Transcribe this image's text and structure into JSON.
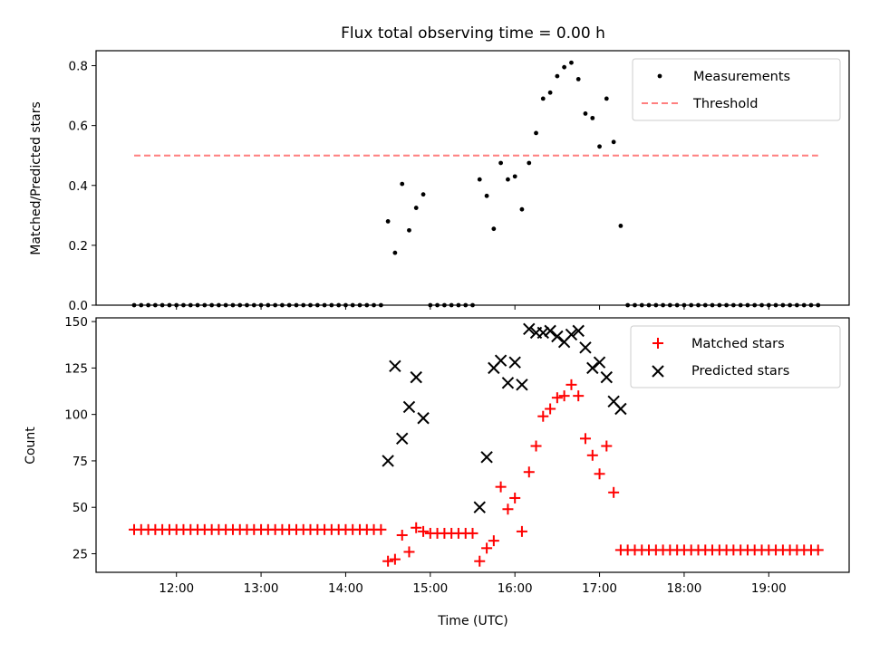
{
  "chart_data": [
    {
      "type": "scatter",
      "title": "Flux total observing time = 0.00 h",
      "ylabel": "Matched/Predicted stars",
      "ylim": [
        0,
        0.85
      ],
      "yticks": [
        "0.0",
        "0.2",
        "0.4",
        "0.6",
        "0.8"
      ],
      "yticks_values": [
        0,
        0.2,
        0.4,
        0.6,
        0.8
      ],
      "legend_position": "top-right",
      "series": [
        {
          "name": "Measurements",
          "color": "#000000",
          "marker": "dot",
          "points": [
            [
              11.5,
              0
            ],
            [
              11.583,
              0
            ],
            [
              11.667,
              0
            ],
            [
              11.75,
              0
            ],
            [
              11.833,
              0
            ],
            [
              11.917,
              0
            ],
            [
              12.0,
              0
            ],
            [
              12.083,
              0
            ],
            [
              12.167,
              0
            ],
            [
              12.25,
              0
            ],
            [
              12.333,
              0
            ],
            [
              12.417,
              0
            ],
            [
              12.5,
              0
            ],
            [
              12.583,
              0
            ],
            [
              12.667,
              0
            ],
            [
              12.75,
              0
            ],
            [
              12.833,
              0
            ],
            [
              12.917,
              0
            ],
            [
              13.0,
              0
            ],
            [
              13.083,
              0
            ],
            [
              13.167,
              0
            ],
            [
              13.25,
              0
            ],
            [
              13.333,
              0
            ],
            [
              13.417,
              0
            ],
            [
              13.5,
              0
            ],
            [
              13.583,
              0
            ],
            [
              13.667,
              0
            ],
            [
              13.75,
              0
            ],
            [
              13.833,
              0
            ],
            [
              13.917,
              0
            ],
            [
              14.0,
              0
            ],
            [
              14.083,
              0
            ],
            [
              14.167,
              0
            ],
            [
              14.25,
              0
            ],
            [
              14.333,
              0
            ],
            [
              14.417,
              0
            ],
            [
              14.5,
              0.28
            ],
            [
              14.583,
              0.175
            ],
            [
              14.667,
              0.405
            ],
            [
              14.75,
              0.25
            ],
            [
              14.833,
              0.325
            ],
            [
              14.917,
              0.37
            ],
            [
              15.0,
              0
            ],
            [
              15.083,
              0
            ],
            [
              15.167,
              0
            ],
            [
              15.25,
              0
            ],
            [
              15.333,
              0
            ],
            [
              15.417,
              0
            ],
            [
              15.5,
              0
            ],
            [
              15.583,
              0.42
            ],
            [
              15.667,
              0.365
            ],
            [
              15.75,
              0.255
            ],
            [
              15.833,
              0.475
            ],
            [
              15.917,
              0.42
            ],
            [
              16.0,
              0.43
            ],
            [
              16.083,
              0.32
            ],
            [
              16.167,
              0.475
            ],
            [
              16.25,
              0.575
            ],
            [
              16.333,
              0.69
            ],
            [
              16.417,
              0.71
            ],
            [
              16.5,
              0.765
            ],
            [
              16.583,
              0.795
            ],
            [
              16.667,
              0.81
            ],
            [
              16.75,
              0.755
            ],
            [
              16.833,
              0.64
            ],
            [
              16.917,
              0.625
            ],
            [
              17.0,
              0.53
            ],
            [
              17.083,
              0.69
            ],
            [
              17.167,
              0.545
            ],
            [
              17.25,
              0.265
            ],
            [
              17.333,
              0
            ],
            [
              17.417,
              0
            ],
            [
              17.5,
              0
            ],
            [
              17.583,
              0
            ],
            [
              17.667,
              0
            ],
            [
              17.75,
              0
            ],
            [
              17.833,
              0
            ],
            [
              17.917,
              0
            ],
            [
              18.0,
              0
            ],
            [
              18.083,
              0
            ],
            [
              18.167,
              0
            ],
            [
              18.25,
              0
            ],
            [
              18.333,
              0
            ],
            [
              18.417,
              0
            ],
            [
              18.5,
              0
            ],
            [
              18.583,
              0
            ],
            [
              18.667,
              0
            ],
            [
              18.75,
              0
            ],
            [
              18.833,
              0
            ],
            [
              18.917,
              0
            ],
            [
              19.0,
              0
            ],
            [
              19.083,
              0
            ],
            [
              19.167,
              0
            ],
            [
              19.25,
              0
            ],
            [
              19.333,
              0
            ],
            [
              19.417,
              0
            ],
            [
              19.5,
              0
            ],
            [
              19.583,
              0
            ]
          ]
        },
        {
          "name": "Threshold",
          "color": "#ff7f7f",
          "style": "dashed",
          "line": [
            [
              11.5,
              0.5
            ],
            [
              19.583,
              0.5
            ]
          ]
        }
      ]
    },
    {
      "type": "scatter",
      "xlabel": "Time (UTC)",
      "ylabel": "Count",
      "xlim": [
        11.05,
        19.95
      ],
      "ylim": [
        15,
        152
      ],
      "xticks": [
        "12:00",
        "13:00",
        "14:00",
        "15:00",
        "16:00",
        "17:00",
        "18:00",
        "19:00"
      ],
      "xticks_values": [
        12,
        13,
        14,
        15,
        16,
        17,
        18,
        19
      ],
      "yticks": [
        "25",
        "50",
        "75",
        "100",
        "125",
        "150"
      ],
      "yticks_values": [
        25,
        50,
        75,
        100,
        125,
        150
      ],
      "legend_position": "top-right",
      "series": [
        {
          "name": "Matched stars",
          "color": "#ff0000",
          "marker": "plus",
          "points": [
            [
              11.5,
              38
            ],
            [
              11.583,
              38
            ],
            [
              11.667,
              38
            ],
            [
              11.75,
              38
            ],
            [
              11.833,
              38
            ],
            [
              11.917,
              38
            ],
            [
              12.0,
              38
            ],
            [
              12.083,
              38
            ],
            [
              12.167,
              38
            ],
            [
              12.25,
              38
            ],
            [
              12.333,
              38
            ],
            [
              12.417,
              38
            ],
            [
              12.5,
              38
            ],
            [
              12.583,
              38
            ],
            [
              12.667,
              38
            ],
            [
              12.75,
              38
            ],
            [
              12.833,
              38
            ],
            [
              12.917,
              38
            ],
            [
              13.0,
              38
            ],
            [
              13.083,
              38
            ],
            [
              13.167,
              38
            ],
            [
              13.25,
              38
            ],
            [
              13.333,
              38
            ],
            [
              13.417,
              38
            ],
            [
              13.5,
              38
            ],
            [
              13.583,
              38
            ],
            [
              13.667,
              38
            ],
            [
              13.75,
              38
            ],
            [
              13.833,
              38
            ],
            [
              13.917,
              38
            ],
            [
              14.0,
              38
            ],
            [
              14.083,
              38
            ],
            [
              14.167,
              38
            ],
            [
              14.25,
              38
            ],
            [
              14.333,
              38
            ],
            [
              14.417,
              38
            ],
            [
              14.5,
              21
            ],
            [
              14.583,
              22
            ],
            [
              14.667,
              35
            ],
            [
              14.75,
              26
            ],
            [
              14.833,
              39
            ],
            [
              14.917,
              37
            ],
            [
              15.0,
              36
            ],
            [
              15.083,
              36
            ],
            [
              15.167,
              36
            ],
            [
              15.25,
              36
            ],
            [
              15.333,
              36
            ],
            [
              15.417,
              36
            ],
            [
              15.5,
              36
            ],
            [
              15.583,
              21
            ],
            [
              15.667,
              28
            ],
            [
              15.75,
              32
            ],
            [
              15.833,
              61
            ],
            [
              15.917,
              49
            ],
            [
              16.0,
              55
            ],
            [
              16.083,
              37
            ],
            [
              16.167,
              69
            ],
            [
              16.25,
              83
            ],
            [
              16.333,
              99
            ],
            [
              16.417,
              103
            ],
            [
              16.5,
              109
            ],
            [
              16.583,
              110
            ],
            [
              16.667,
              116
            ],
            [
              16.75,
              110
            ],
            [
              16.833,
              87
            ],
            [
              16.917,
              78
            ],
            [
              17.0,
              68
            ],
            [
              17.083,
              83
            ],
            [
              17.167,
              58
            ],
            [
              17.25,
              27
            ],
            [
              17.333,
              27
            ],
            [
              17.417,
              27
            ],
            [
              17.5,
              27
            ],
            [
              17.583,
              27
            ],
            [
              17.667,
              27
            ],
            [
              17.75,
              27
            ],
            [
              17.833,
              27
            ],
            [
              17.917,
              27
            ],
            [
              18.0,
              27
            ],
            [
              18.083,
              27
            ],
            [
              18.167,
              27
            ],
            [
              18.25,
              27
            ],
            [
              18.333,
              27
            ],
            [
              18.417,
              27
            ],
            [
              18.5,
              27
            ],
            [
              18.583,
              27
            ],
            [
              18.667,
              27
            ],
            [
              18.75,
              27
            ],
            [
              18.833,
              27
            ],
            [
              18.917,
              27
            ],
            [
              19.0,
              27
            ],
            [
              19.083,
              27
            ],
            [
              19.167,
              27
            ],
            [
              19.25,
              27
            ],
            [
              19.333,
              27
            ],
            [
              19.417,
              27
            ],
            [
              19.5,
              27
            ],
            [
              19.583,
              27
            ]
          ]
        },
        {
          "name": "Predicted stars",
          "color": "#000000",
          "marker": "x",
          "points": [
            [
              14.5,
              75
            ],
            [
              14.583,
              126
            ],
            [
              14.667,
              87
            ],
            [
              14.75,
              104
            ],
            [
              14.833,
              120
            ],
            [
              14.917,
              98
            ],
            [
              15.583,
              50
            ],
            [
              15.667,
              77
            ],
            [
              15.75,
              125
            ],
            [
              15.833,
              129
            ],
            [
              15.917,
              117
            ],
            [
              16.0,
              128
            ],
            [
              16.083,
              116
            ],
            [
              16.167,
              146
            ],
            [
              16.25,
              144
            ],
            [
              16.333,
              144
            ],
            [
              16.417,
              145
            ],
            [
              16.5,
              142
            ],
            [
              16.583,
              139
            ],
            [
              16.667,
              143
            ],
            [
              16.75,
              145
            ],
            [
              16.833,
              136
            ],
            [
              16.917,
              125
            ],
            [
              17.0,
              128
            ],
            [
              17.083,
              120
            ],
            [
              17.167,
              107
            ],
            [
              17.25,
              103
            ]
          ]
        }
      ]
    }
  ]
}
